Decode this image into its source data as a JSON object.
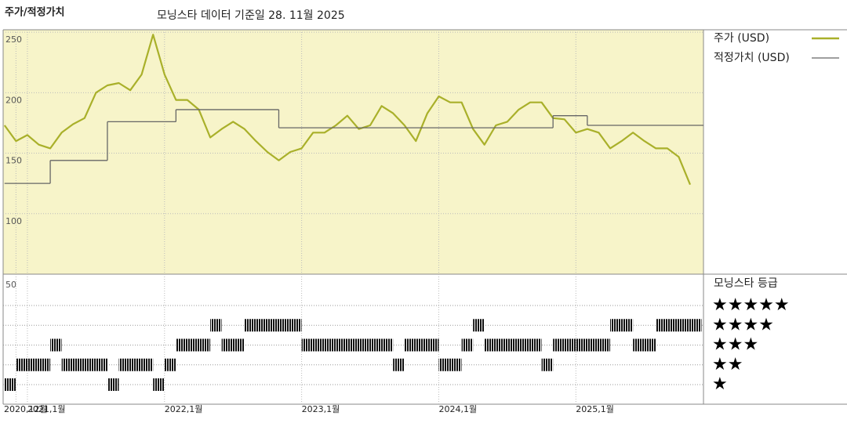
{
  "chart_data": {
    "type": "line",
    "title": "주가/적정가치",
    "subtitle": "모닝스타 데이터 기준일 28. 11월 2025",
    "x": [
      "2020-11",
      "2020-12",
      "2021-01",
      "2021-02",
      "2021-03",
      "2021-04",
      "2021-05",
      "2021-06",
      "2021-07",
      "2021-08",
      "2021-09",
      "2021-10",
      "2021-11",
      "2021-12",
      "2022-01",
      "2022-02",
      "2022-03",
      "2022-04",
      "2022-05",
      "2022-06",
      "2022-07",
      "2022-08",
      "2022-09",
      "2022-10",
      "2022-11",
      "2022-12",
      "2023-01",
      "2023-02",
      "2023-03",
      "2023-04",
      "2023-05",
      "2023-06",
      "2023-07",
      "2023-08",
      "2023-09",
      "2023-10",
      "2023-11",
      "2023-12",
      "2024-01",
      "2024-02",
      "2024-03",
      "2024-04",
      "2024-05",
      "2024-06",
      "2024-07",
      "2024-08",
      "2024-09",
      "2024-10",
      "2024-11",
      "2024-12",
      "2025-01",
      "2025-02",
      "2025-03",
      "2025-04",
      "2025-05",
      "2025-06",
      "2025-07",
      "2025-08",
      "2025-09",
      "2025-10",
      "2025-11"
    ],
    "xlim": [
      "2020-11",
      "2025-11"
    ],
    "xticks": [
      {
        "value": "2020-12",
        "label": "2020,12월"
      },
      {
        "value": "2021-01",
        "label": "2021,1월"
      },
      {
        "value": "2022-01",
        "label": "2022,1월"
      },
      {
        "value": "2023-01",
        "label": "2023,1월"
      },
      {
        "value": "2024-01",
        "label": "2024,1월"
      },
      {
        "value": "2025-01",
        "label": "2025,1월"
      }
    ],
    "ylim": [
      50,
      252
    ],
    "yticks": [
      100,
      150,
      200,
      250
    ],
    "grid": true,
    "background": "#f7f4c9",
    "series": [
      {
        "name": "주가 (USD)",
        "color": "#a9b02a",
        "values": [
          173,
          160,
          165,
          157,
          154,
          167,
          174,
          179,
          200,
          206,
          208,
          202,
          215,
          248,
          215,
          194,
          194,
          186,
          163,
          170,
          176,
          170,
          160,
          151,
          144,
          151,
          154,
          167,
          167,
          173,
          181,
          170,
          173,
          189,
          183,
          173,
          160,
          183,
          197,
          192,
          192,
          170,
          157,
          173,
          176,
          186,
          192,
          192,
          179,
          178,
          167,
          170,
          167,
          154,
          160,
          167,
          160,
          154,
          154,
          147,
          124
        ]
      },
      {
        "name": "적정가치 (USD)",
        "color": "#666666",
        "step": true,
        "x": [
          "2020-11",
          "2021-03",
          "2021-08",
          "2022-02",
          "2022-11",
          "2024-11",
          "2025-02"
        ],
        "values": [
          125,
          144,
          176,
          186,
          171,
          181,
          173
        ]
      }
    ],
    "rating": {
      "title": "모닝스타 등급",
      "axis_label": "50",
      "levels": [
        {
          "stars": 5,
          "label": "★★★★★"
        },
        {
          "stars": 4,
          "label": "★★★★"
        },
        {
          "stars": 3,
          "label": "★★★"
        },
        {
          "stars": 2,
          "label": "★★"
        },
        {
          "stars": 1,
          "label": "★"
        }
      ],
      "segments": [
        {
          "start": "2020-11",
          "end": "2020-11",
          "stars": 1
        },
        {
          "start": "2020-12",
          "end": "2021-02",
          "stars": 2
        },
        {
          "start": "2021-03",
          "end": "2021-03",
          "stars": 3
        },
        {
          "start": "2021-04",
          "end": "2021-07",
          "stars": 2
        },
        {
          "start": "2021-08",
          "end": "2021-08",
          "stars": 1
        },
        {
          "start": "2021-09",
          "end": "2021-11",
          "stars": 2
        },
        {
          "start": "2021-12",
          "end": "2021-12",
          "stars": 1
        },
        {
          "start": "2022-01",
          "end": "2022-01",
          "stars": 2
        },
        {
          "start": "2022-02",
          "end": "2022-04",
          "stars": 3
        },
        {
          "start": "2022-05",
          "end": "2022-05",
          "stars": 4
        },
        {
          "start": "2022-06",
          "end": "2022-07",
          "stars": 3
        },
        {
          "start": "2022-08",
          "end": "2022-12",
          "stars": 4
        },
        {
          "start": "2023-01",
          "end": "2023-08",
          "stars": 3
        },
        {
          "start": "2023-09",
          "end": "2023-09",
          "stars": 2
        },
        {
          "start": "2023-10",
          "end": "2023-12",
          "stars": 3
        },
        {
          "start": "2024-01",
          "end": "2024-02",
          "stars": 2
        },
        {
          "start": "2024-03",
          "end": "2024-03",
          "stars": 3
        },
        {
          "start": "2024-04",
          "end": "2024-04",
          "stars": 4
        },
        {
          "start": "2024-05",
          "end": "2024-09",
          "stars": 3
        },
        {
          "start": "2024-10",
          "end": "2024-10",
          "stars": 2
        },
        {
          "start": "2024-11",
          "end": "2025-03",
          "stars": 3
        },
        {
          "start": "2025-04",
          "end": "2025-05",
          "stars": 4
        },
        {
          "start": "2025-06",
          "end": "2025-07",
          "stars": 3
        },
        {
          "start": "2025-08",
          "end": "2025-11",
          "stars": 4
        }
      ]
    }
  }
}
